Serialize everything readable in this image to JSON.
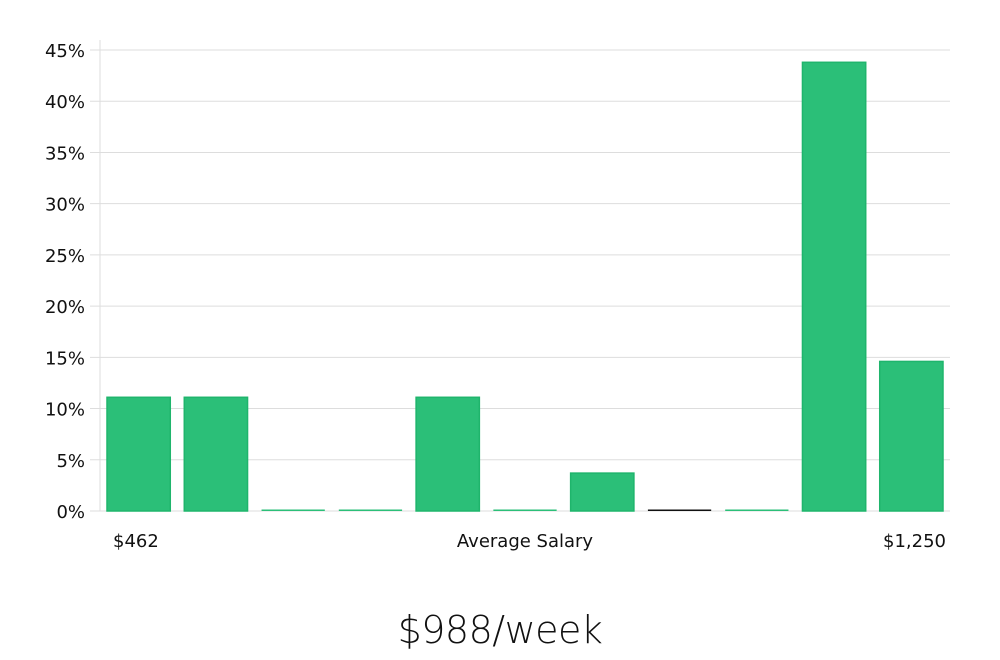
{
  "chart_data": {
    "type": "bar",
    "title": "",
    "xlabel": "Average Salary",
    "ylabel": "",
    "x_min_label": "$462",
    "x_max_label": "$1,250",
    "ylim": [
      0,
      45
    ],
    "yticks": [
      "0%",
      "5%",
      "10%",
      "15%",
      "20%",
      "25%",
      "30%",
      "35%",
      "40%",
      "45%"
    ],
    "grid": true,
    "values": [
      11.1,
      11.1,
      0,
      0,
      11.1,
      0,
      3.7,
      0,
      0,
      43.8,
      14.6
    ],
    "highlight_index": 7,
    "colors": {
      "bar": "#2bbf78",
      "bar_edge": "#1fb56c",
      "highlight": "#111111",
      "grid": "#dddddd"
    }
  },
  "summary": "$988/week"
}
